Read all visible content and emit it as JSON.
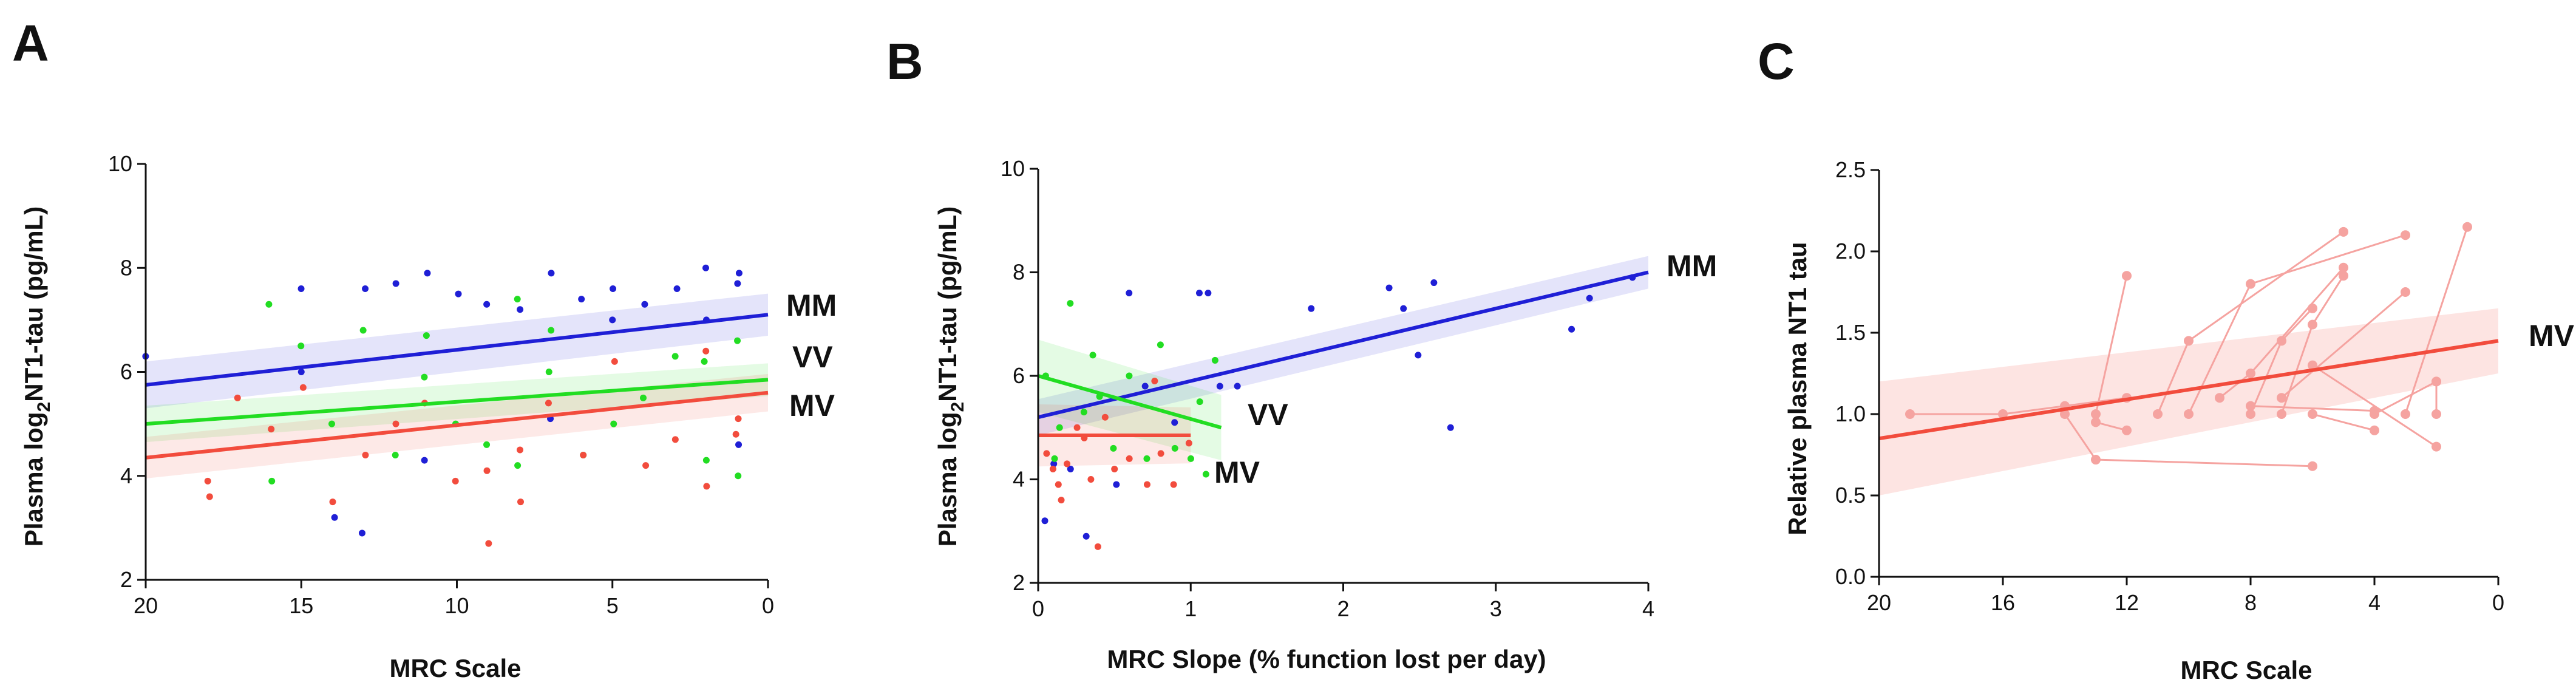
{
  "colors": {
    "MM": "#1f1fd6",
    "VV": "#22dd22",
    "MV": "#f24c3d",
    "MV_light": "#f5a3a0"
  },
  "chart_data": [
    {
      "panel": "A",
      "type": "scatter",
      "xlabel": "MRC Scale",
      "ylabel_prefix": "Plasma log",
      "ylabel_sub": "2",
      "ylabel_suffix": "NT1-tau (pg/mL)",
      "xlim": [
        20,
        0
      ],
      "ylim": [
        2,
        10
      ],
      "xticks": [
        20,
        15,
        10,
        5,
        0
      ],
      "yticks": [
        2,
        4,
        6,
        8,
        10
      ],
      "series": [
        {
          "name": "MM",
          "fit": [
            [
              20,
              5.75
            ],
            [
              0,
              7.1
            ]
          ],
          "band": 0.45,
          "points": [
            [
              20,
              6.3
            ],
            [
              15,
              7.6
            ],
            [
              15,
              6.0
            ],
            [
              14,
              3.2
            ],
            [
              13,
              2.9
            ],
            [
              13,
              7.6
            ],
            [
              12,
              7.7
            ],
            [
              11,
              7.9
            ],
            [
              11,
              4.3
            ],
            [
              10,
              7.5
            ],
            [
              9,
              7.3
            ],
            [
              8,
              7.2
            ],
            [
              7,
              7.9
            ],
            [
              7,
              5.1
            ],
            [
              6,
              7.4
            ],
            [
              5,
              7.6
            ],
            [
              5,
              7.0
            ],
            [
              4,
              7.3
            ],
            [
              3,
              7.6
            ],
            [
              2,
              8.0
            ],
            [
              2,
              7.0
            ],
            [
              1,
              7.9
            ],
            [
              1,
              4.6
            ],
            [
              1,
              7.7
            ]
          ]
        },
        {
          "name": "VV",
          "fit": [
            [
              20,
              5.0
            ],
            [
              0,
              5.85
            ]
          ],
          "band": 0.35,
          "points": [
            [
              16,
              7.3
            ],
            [
              16,
              3.9
            ],
            [
              15,
              6.5
            ],
            [
              14,
              5.0
            ],
            [
              13,
              6.8
            ],
            [
              12,
              4.4
            ],
            [
              11,
              5.9
            ],
            [
              11,
              6.7
            ],
            [
              10,
              5.0
            ],
            [
              9,
              4.6
            ],
            [
              8,
              7.4
            ],
            [
              8,
              4.2
            ],
            [
              7,
              6.8
            ],
            [
              7,
              6.0
            ],
            [
              6,
              4.4
            ],
            [
              5,
              5.0
            ],
            [
              4,
              5.5
            ],
            [
              3,
              6.3
            ],
            [
              2,
              6.2
            ],
            [
              2,
              4.3
            ],
            [
              1,
              6.6
            ],
            [
              1,
              4.0
            ]
          ]
        },
        {
          "name": "MV",
          "fit": [
            [
              20,
              4.35
            ],
            [
              0,
              5.6
            ]
          ],
          "band": 0.4,
          "points": [
            [
              18,
              3.6
            ],
            [
              18,
              3.9
            ],
            [
              17,
              5.5
            ],
            [
              16,
              4.9
            ],
            [
              15,
              5.7
            ],
            [
              14,
              3.5
            ],
            [
              13,
              4.4
            ],
            [
              12,
              5.0
            ],
            [
              11,
              5.4
            ],
            [
              10,
              3.9
            ],
            [
              9,
              2.7
            ],
            [
              9,
              4.1
            ],
            [
              8,
              4.5
            ],
            [
              8,
              3.5
            ],
            [
              7,
              5.4
            ],
            [
              6,
              4.4
            ],
            [
              5,
              6.2
            ],
            [
              4,
              4.2
            ],
            [
              3,
              4.7
            ],
            [
              2,
              6.4
            ],
            [
              2,
              3.8
            ],
            [
              1,
              5.1
            ],
            [
              1,
              4.8
            ]
          ]
        }
      ]
    },
    {
      "panel": "B",
      "type": "scatter",
      "xlabel": "MRC Slope (% function lost per day)",
      "ylabel_prefix": "Plasma log",
      "ylabel_sub": "2",
      "ylabel_suffix": "NT1-tau (pg/mL)",
      "xlim": [
        0,
        4
      ],
      "ylim": [
        2,
        10
      ],
      "xticks": [
        0,
        1,
        2,
        3,
        4
      ],
      "yticks": [
        2,
        4,
        6,
        8,
        10
      ],
      "series": [
        {
          "name": "MM",
          "fit": [
            [
              0,
              5.2
            ],
            [
              4,
              8.0
            ]
          ],
          "band": 0.35,
          "points": [
            [
              0.05,
              3.2
            ],
            [
              0.1,
              4.3
            ],
            [
              0.2,
              4.2
            ],
            [
              0.3,
              2.9
            ],
            [
              0.5,
              3.9
            ],
            [
              0.6,
              7.6
            ],
            [
              0.7,
              5.8
            ],
            [
              0.9,
              5.1
            ],
            [
              1.05,
              7.6
            ],
            [
              1.1,
              7.6
            ],
            [
              1.2,
              5.8
            ],
            [
              1.3,
              5.8
            ],
            [
              1.8,
              7.3
            ],
            [
              2.3,
              7.7
            ],
            [
              2.4,
              7.3
            ],
            [
              2.5,
              6.4
            ],
            [
              2.6,
              7.8
            ],
            [
              2.7,
              5.0
            ],
            [
              3.5,
              6.9
            ],
            [
              3.6,
              7.5
            ],
            [
              3.9,
              7.9
            ]
          ]
        },
        {
          "name": "VV",
          "fit": [
            [
              0,
              6.0
            ],
            [
              1.2,
              5.0
            ]
          ],
          "band": 0.7,
          "points": [
            [
              0.05,
              6.0
            ],
            [
              0.1,
              4.4
            ],
            [
              0.15,
              5.0
            ],
            [
              0.2,
              7.4
            ],
            [
              0.3,
              5.3
            ],
            [
              0.35,
              6.4
            ],
            [
              0.4,
              5.6
            ],
            [
              0.5,
              4.6
            ],
            [
              0.6,
              6.0
            ],
            [
              0.7,
              4.4
            ],
            [
              0.8,
              6.6
            ],
            [
              0.9,
              4.6
            ],
            [
              1.0,
              4.4
            ],
            [
              1.05,
              5.5
            ],
            [
              1.1,
              4.1
            ],
            [
              1.15,
              6.3
            ]
          ]
        },
        {
          "name": "MV",
          "fit": [
            [
              0,
              4.85
            ],
            [
              1.0,
              4.85
            ]
          ],
          "band": 0.6,
          "points": [
            [
              0.05,
              4.5
            ],
            [
              0.1,
              4.2
            ],
            [
              0.12,
              3.9
            ],
            [
              0.15,
              3.6
            ],
            [
              0.2,
              4.3
            ],
            [
              0.25,
              5.0
            ],
            [
              0.3,
              4.8
            ],
            [
              0.35,
              4.0
            ],
            [
              0.4,
              2.7
            ],
            [
              0.45,
              5.2
            ],
            [
              0.5,
              4.2
            ],
            [
              0.6,
              4.4
            ],
            [
              0.7,
              3.9
            ],
            [
              0.75,
              5.9
            ],
            [
              0.8,
              4.5
            ],
            [
              0.9,
              3.9
            ],
            [
              1.0,
              4.7
            ]
          ]
        }
      ]
    },
    {
      "panel": "C",
      "type": "line",
      "xlabel": "MRC Scale",
      "ylabel": "Relative plasma NT1 tau",
      "xlim": [
        20,
        0
      ],
      "ylim": [
        0,
        2.5
      ],
      "xticks": [
        20,
        16,
        12,
        8,
        4,
        0
      ],
      "ytick_labels": [
        "0.0",
        "0.5",
        "1.0",
        "1.5",
        "2.0",
        "2.5"
      ],
      "fit": {
        "name": "MV",
        "points": [
          [
            20,
            0.85
          ],
          [
            0,
            1.45
          ]
        ],
        "band_start": 0.35,
        "band_end": 0.2
      },
      "trajectories": [
        [
          [
            19,
            1.0
          ],
          [
            16,
            1.0
          ],
          [
            14,
            1.05
          ],
          [
            12,
            1.1
          ]
        ],
        [
          [
            13,
            1.0
          ],
          [
            12,
            1.85
          ]
        ],
        [
          [
            14,
            1.0
          ],
          [
            13,
            0.72
          ],
          [
            6,
            0.68
          ]
        ],
        [
          [
            13,
            0.95
          ],
          [
            12,
            0.9
          ]
        ],
        [
          [
            11,
            1.0
          ],
          [
            10,
            1.45
          ],
          [
            5,
            2.12
          ]
        ],
        [
          [
            10,
            1.0
          ],
          [
            8,
            1.8
          ],
          [
            3,
            2.1
          ]
        ],
        [
          [
            9,
            1.1
          ],
          [
            8,
            1.25
          ],
          [
            5,
            1.9
          ]
        ],
        [
          [
            8,
            1.0
          ],
          [
            7,
            1.45
          ],
          [
            6,
            1.65
          ]
        ],
        [
          [
            7,
            1.0
          ],
          [
            6,
            1.55
          ],
          [
            5,
            1.85
          ]
        ],
        [
          [
            8,
            1.05
          ],
          [
            4,
            1.02
          ]
        ],
        [
          [
            6,
            1.0
          ],
          [
            4,
            0.9
          ]
        ],
        [
          [
            7,
            1.1
          ],
          [
            3,
            1.75
          ]
        ],
        [
          [
            6,
            1.3
          ],
          [
            2,
            0.8
          ]
        ],
        [
          [
            3,
            1.0
          ],
          [
            1,
            2.15
          ]
        ],
        [
          [
            4,
            1.0
          ],
          [
            2,
            1.2
          ]
        ],
        [
          [
            2,
            1.0
          ],
          [
            2,
            1.2
          ]
        ]
      ]
    }
  ]
}
